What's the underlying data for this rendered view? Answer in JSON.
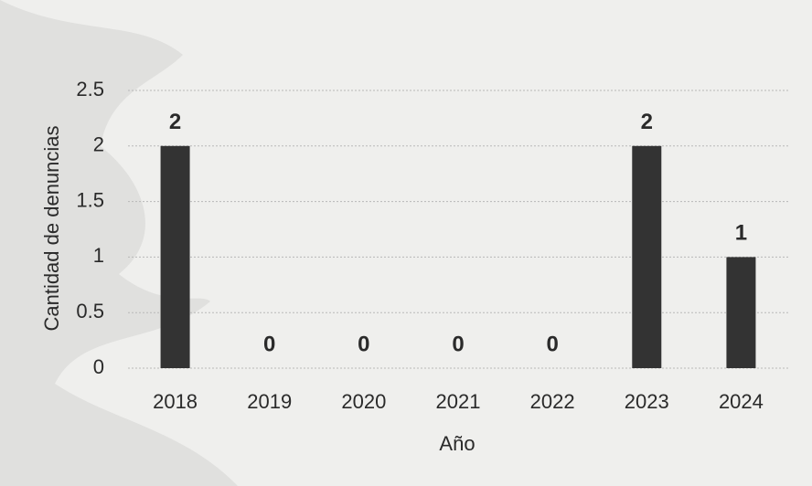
{
  "chart_data": {
    "type": "bar",
    "x_label": "Año",
    "y_label": "Cantidad de denuncias",
    "categories": [
      "2018",
      "2019",
      "2020",
      "2021",
      "2022",
      "2023",
      "2024"
    ],
    "values": [
      2,
      0,
      0,
      0,
      0,
      2,
      1
    ],
    "color": "#333333",
    "ylim": [
      0,
      2.5
    ],
    "yticks": [
      0,
      0.5,
      1,
      1.5,
      2,
      2.5
    ],
    "grid": true
  }
}
